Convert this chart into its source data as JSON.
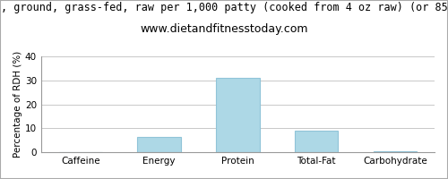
{
  "title_line1": ", ground, grass-fed, raw per 1,000 patty (cooked from 4 oz raw) (or 85",
  "title_line2": "www.dietandfitnesstoday.com",
  "categories": [
    "Caffeine",
    "Energy",
    "Protein",
    "Total-Fat",
    "Carbohydrate"
  ],
  "values": [
    0,
    6.3,
    31,
    9,
    0.3
  ],
  "bar_color": "#add8e6",
  "bar_edge_color": "#90c4d8",
  "ylabel": "Percentage of RDH (%)",
  "ylim": [
    0,
    40
  ],
  "yticks": [
    0,
    10,
    20,
    30,
    40
  ],
  "background_color": "#ffffff",
  "grid_color": "#c8c8c8",
  "title_fontsize": 8.5,
  "subtitle_fontsize": 9,
  "tick_fontsize": 7.5,
  "ylabel_fontsize": 7.5,
  "border_color": "#aaaaaa"
}
